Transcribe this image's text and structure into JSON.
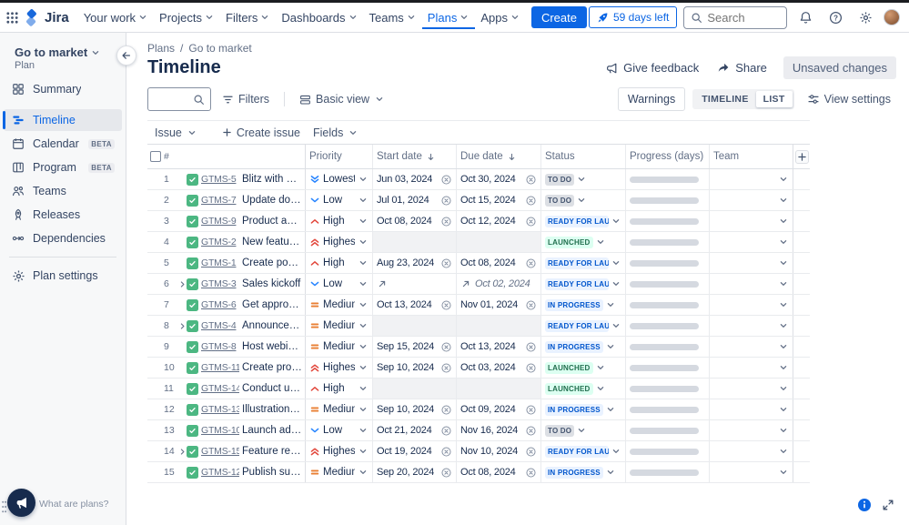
{
  "brand_color": "#0c66e4",
  "navbar": {
    "logo": "Jira",
    "items": [
      "Your work",
      "Projects",
      "Filters",
      "Dashboards",
      "Teams",
      "Plans",
      "Apps"
    ],
    "active_item": "Plans",
    "create": "Create",
    "trial": "59 days left",
    "search_placeholder": "Search"
  },
  "sidebar": {
    "plan_name": "Go to market",
    "plan_label": "Plan",
    "items": [
      {
        "label": "Summary",
        "icon": "summary-icon",
        "active": false,
        "badge": ""
      },
      {
        "label": "Timeline",
        "icon": "timeline-icon",
        "active": true,
        "badge": ""
      },
      {
        "label": "Calendar",
        "icon": "calendar-icon",
        "active": false,
        "badge": "BETA"
      },
      {
        "label": "Program",
        "icon": "program-icon",
        "active": false,
        "badge": "BETA"
      },
      {
        "label": "Teams",
        "icon": "teams-icon",
        "active": false,
        "badge": ""
      },
      {
        "label": "Releases",
        "icon": "releases-icon",
        "active": false,
        "badge": ""
      },
      {
        "label": "Dependencies",
        "icon": "dependencies-icon",
        "active": false,
        "badge": ""
      }
    ],
    "settings_item": {
      "label": "Plan settings",
      "icon": "gear-icon"
    },
    "footer_text": "What are plans?"
  },
  "header": {
    "breadcrumbs": [
      "Plans",
      "Go to market"
    ],
    "title": "Timeline",
    "feedback": "Give feedback",
    "share": "Share",
    "unsaved": "Unsaved changes"
  },
  "toolbar": {
    "filters": "Filters",
    "view_dropdown": "Basic view",
    "warnings": "Warnings",
    "segments": [
      "TIMELINE",
      "LIST"
    ],
    "active_segment": "LIST",
    "view_settings": "View settings"
  },
  "scope_bar": {
    "issue_dropdown": "Issue",
    "create_issue": "Create issue",
    "fields_dropdown": "Fields"
  },
  "table": {
    "columns": {
      "num": "#",
      "priority": "Priority",
      "start": "Start date",
      "due": "Due date",
      "status": "Status",
      "progress": "Progress (days)",
      "team": "Team"
    },
    "status_colors": {
      "TO DO": {
        "bg": "#dcdfe4",
        "text": "#44546f"
      },
      "IN PROGRESS": {
        "bg": "#e9f2ff",
        "text": "#0055cc"
      },
      "READY FOR LAUNCH": {
        "bg": "#e9f2ff",
        "text": "#0055cc"
      },
      "LAUNCHED": {
        "bg": "#dcfff1",
        "text": "#216e4e"
      }
    },
    "priority_colors": {
      "Highest": "#e2483d",
      "High": "#e2483d",
      "Medium": "#e97f33",
      "Low": "#2684ff",
      "Lowest": "#2684ff"
    },
    "rows": [
      {
        "num": 1,
        "key": "GTMS-5",
        "summary": "Blitz with dev team",
        "priority": "Lowest",
        "start": "Jun 03, 2024",
        "due": "Oct 30, 2024",
        "status": "TO DO",
        "has_children": false,
        "rollup": false
      },
      {
        "num": 2,
        "key": "GTMS-7",
        "summary": "Update documentat…",
        "priority": "Low",
        "start": "Jul 01, 2024",
        "due": "Oct 15, 2024",
        "status": "TO DO",
        "has_children": false,
        "rollup": false
      },
      {
        "num": 3,
        "key": "GTMS-9",
        "summary": "Product and Marke…",
        "priority": "High",
        "start": "Oct 08, 2024",
        "due": "Oct 12, 2024",
        "status": "READY FOR LAUNCH",
        "has_children": false,
        "rollup": false
      },
      {
        "num": 4,
        "key": "GTMS-2",
        "summary": "New feature namin…",
        "priority": "Highest",
        "start": "",
        "due": "",
        "status": "LAUNCHED",
        "has_children": false,
        "rollup": false
      },
      {
        "num": 5,
        "key": "GTMS-1",
        "summary": "Create positioning …",
        "priority": "High",
        "start": "Aug 23, 2024",
        "due": "Oct 08, 2024",
        "status": "READY FOR LAUNCH",
        "has_children": false,
        "rollup": false
      },
      {
        "num": 6,
        "key": "GTMS-3",
        "summary": "Sales kickoff",
        "priority": "Low",
        "start": "",
        "due": "Oct 02, 2024",
        "status": "READY FOR LAUNCH",
        "has_children": true,
        "rollup": true
      },
      {
        "num": 7,
        "key": "GTMS-6",
        "summary": "Get approvals on l…",
        "priority": "Medium",
        "start": "Oct 13, 2024",
        "due": "Nov 01, 2024",
        "status": "IN PROGRESS",
        "has_children": false,
        "rollup": false
      },
      {
        "num": 8,
        "key": "GTMS-4",
        "summary": "Announcement b…",
        "priority": "Medium",
        "start": "",
        "due": "",
        "status": "READY FOR LAUNCH",
        "has_children": true,
        "rollup": false
      },
      {
        "num": 9,
        "key": "GTMS-8",
        "summary": "Host webinar",
        "priority": "Medium",
        "start": "Sep 15, 2024",
        "due": "Oct 13, 2024",
        "status": "IN PROGRESS",
        "has_children": false,
        "rollup": false
      },
      {
        "num": 10,
        "key": "GTMS-11",
        "summary": "Create product sc…",
        "priority": "Highest",
        "start": "Sep 10, 2024",
        "due": "Oct 03, 2024",
        "status": "LAUNCHED",
        "has_children": false,
        "rollup": false
      },
      {
        "num": 11,
        "key": "GTMS-14",
        "summary": "Conduct user inte…",
        "priority": "High",
        "start": "",
        "due": "",
        "status": "LAUNCHED",
        "has_children": false,
        "rollup": false
      },
      {
        "num": 12,
        "key": "GTMS-13",
        "summary": "Illustrations for la…",
        "priority": "Medium",
        "start": "Sep 10, 2024",
        "due": "Oct 09, 2024",
        "status": "IN PROGRESS",
        "has_children": false,
        "rollup": false
      },
      {
        "num": 13,
        "key": "GTMS-10",
        "summary": "Launch ad campai…",
        "priority": "Low",
        "start": "Oct 21, 2024",
        "due": "Nov 16, 2024",
        "status": "TO DO",
        "has_children": false,
        "rollup": false
      },
      {
        "num": 14,
        "key": "GTMS-15",
        "summary": "Feature release n…",
        "priority": "Highest",
        "start": "Oct 19, 2024",
        "due": "Nov 10, 2024",
        "status": "READY FOR LAUNCH",
        "has_children": true,
        "rollup": false
      },
      {
        "num": 15,
        "key": "GTMS-12",
        "summary": "Publish support d…",
        "priority": "Medium",
        "start": "Sep 20, 2024",
        "due": "Oct 08, 2024",
        "status": "IN PROGRESS",
        "has_children": false,
        "rollup": false
      }
    ]
  }
}
